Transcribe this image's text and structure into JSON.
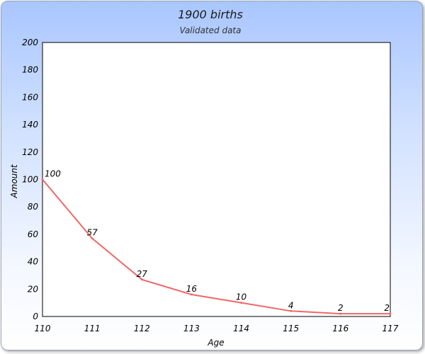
{
  "chart_data": {
    "type": "line",
    "title": "1900 births",
    "subtitle": "Validated data",
    "xlabel": "Age",
    "ylabel": "Amount",
    "x": [
      110,
      111,
      112,
      113,
      114,
      115,
      116,
      117
    ],
    "series": [
      {
        "values": [
          100,
          57,
          27,
          16,
          10,
          4,
          2,
          2
        ],
        "color": "#f06868"
      }
    ],
    "ylim": [
      0,
      200
    ],
    "yticks": [
      0,
      20,
      40,
      60,
      80,
      100,
      120,
      140,
      160,
      180,
      200
    ],
    "xticks": [
      110,
      111,
      112,
      113,
      114,
      115,
      116,
      117
    ],
    "grid": false,
    "legend": "none"
  }
}
